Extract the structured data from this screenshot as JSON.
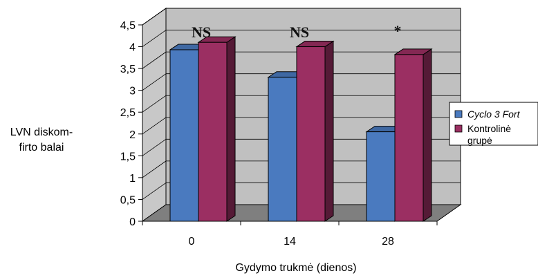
{
  "chart_data": {
    "type": "bar",
    "title": "",
    "xlabel": "Gydymo trukmė (dienos)",
    "ylabel_lines": [
      "LVN diskom-",
      "firto balai"
    ],
    "categories": [
      "0",
      "14",
      "28"
    ],
    "ylim": [
      0,
      4.5
    ],
    "yticks": [
      "0",
      "0,5",
      "1",
      "1,5",
      "2",
      "2,5",
      "3",
      "3,5",
      "4",
      "4,5"
    ],
    "grid": true,
    "series": [
      {
        "name": "Cyclo 3 Fort",
        "italic": true,
        "color": "#4a7abf",
        "values": [
          3.93,
          3.3,
          2.05
        ]
      },
      {
        "name_lines": [
          "Kontrolinė",
          "grupė"
        ],
        "name": "Kontrolinė grupė",
        "color": "#9b2f62",
        "values": [
          4.1,
          4.0,
          3.82
        ]
      }
    ],
    "annotations": [
      "NS",
      "NS",
      "*"
    ],
    "legend": "right",
    "style": "3d-clustered-column"
  }
}
